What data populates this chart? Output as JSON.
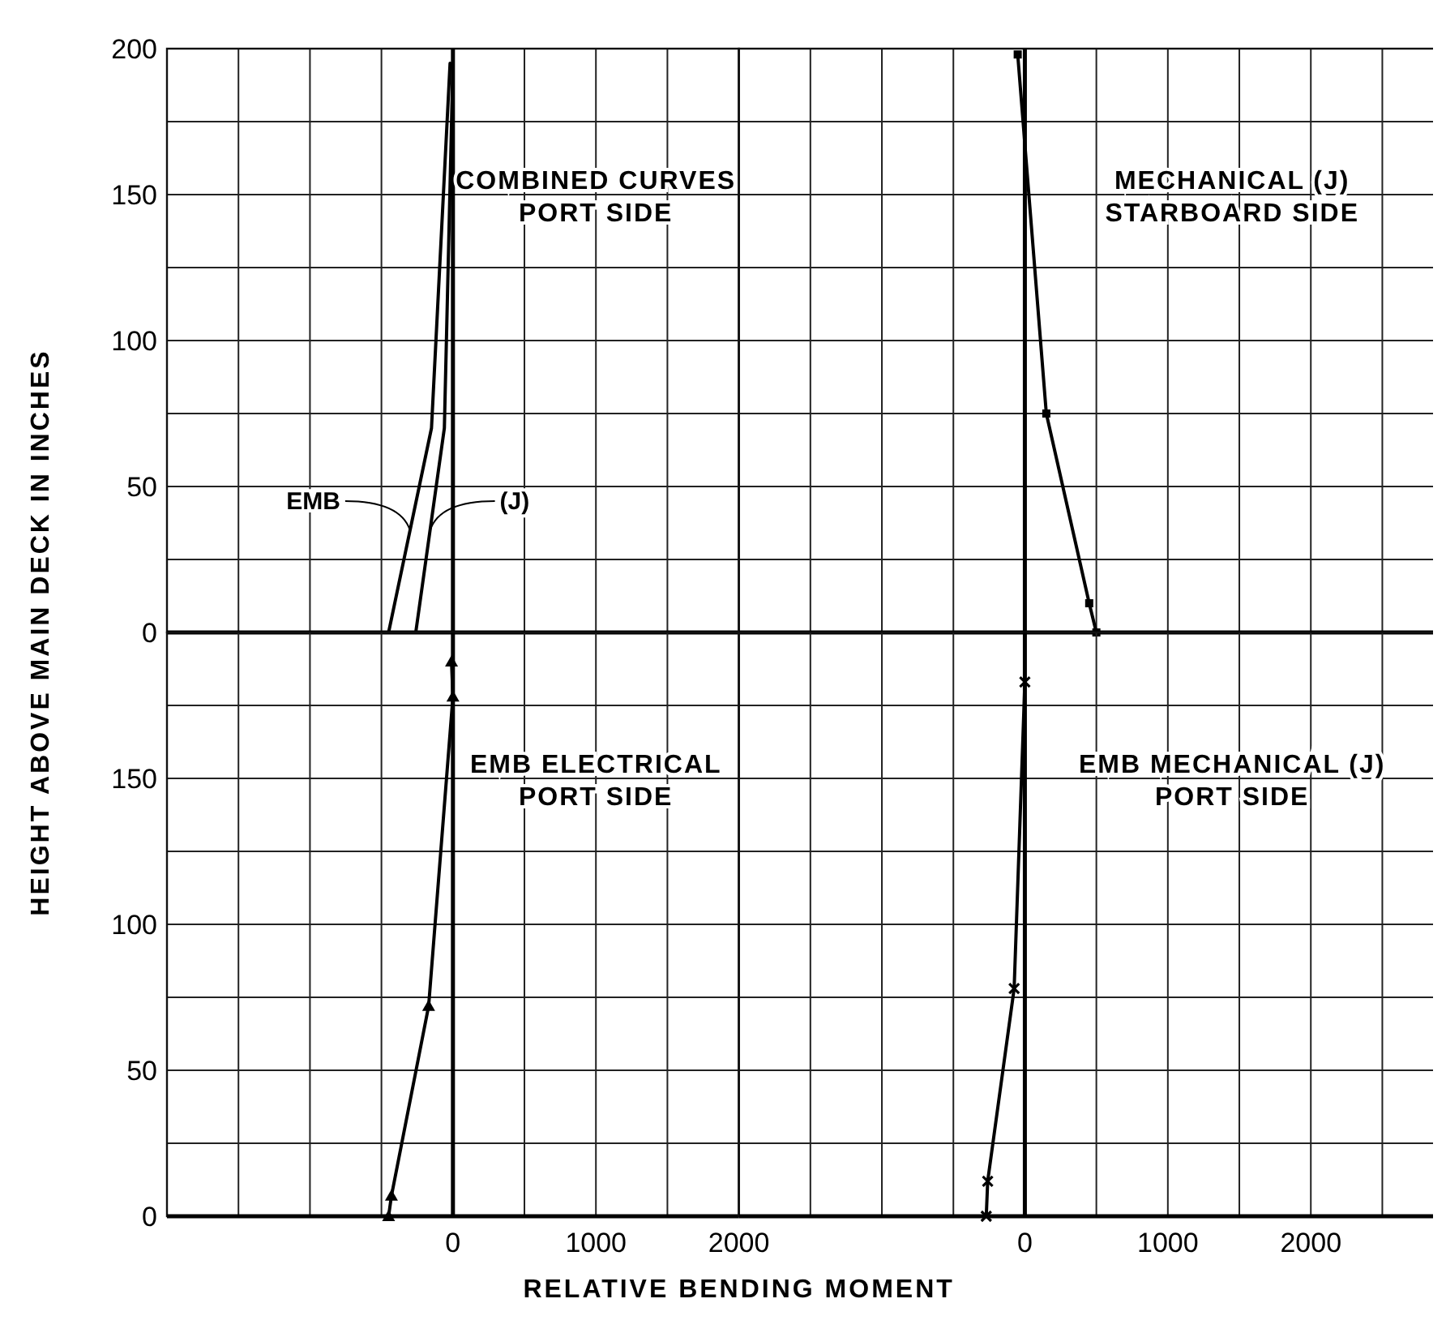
{
  "chart_data": [
    {
      "type": "line",
      "title": "COMBINED CURVES\nPORT SIDE",
      "xlim": [
        -2000,
        2000
      ],
      "ylim": [
        0,
        200
      ],
      "xticks": [
        {
          "value": -2000,
          "label": null
        },
        {
          "value": -1500,
          "label": null
        },
        {
          "value": -1000,
          "label": null
        },
        {
          "value": -500,
          "label": null
        },
        {
          "value": 0,
          "label": null
        },
        {
          "value": 500,
          "label": null
        },
        {
          "value": 1000,
          "label": null
        },
        {
          "value": 1500,
          "label": null
        },
        {
          "value": 2000,
          "label": null
        }
      ],
      "yticks": [
        0,
        {
          "value": 25,
          "label": null
        },
        50,
        {
          "value": 75,
          "label": null
        },
        100,
        {
          "value": 125,
          "label": null
        },
        150,
        {
          "value": 175,
          "label": null
        },
        200
      ],
      "grid": true,
      "tick_labels": "y",
      "marker": "none",
      "ref_lines": [
        {
          "axis": "x",
          "value": 0
        }
      ],
      "series": [
        {
          "name": "EMB",
          "color": "#000000",
          "x": [
            -450,
            -150,
            -20
          ],
          "values": [
            0,
            70,
            195
          ]
        },
        {
          "name": "(J)",
          "color": "#000000",
          "x": [
            -260,
            -60,
            0
          ],
          "values": [
            0,
            70,
            195
          ]
        }
      ]
    },
    {
      "type": "line",
      "title": "MECHANICAL (J)\nSTARBOARD SIDE",
      "xlim": [
        -2000,
        2900
      ],
      "ylim": [
        0,
        200
      ],
      "xticks": [
        {
          "value": -2000,
          "label": null
        },
        {
          "value": -1500,
          "label": null
        },
        {
          "value": -1000,
          "label": null
        },
        {
          "value": -500,
          "label": null
        },
        {
          "value": 0,
          "label": null
        },
        {
          "value": 500,
          "label": null
        },
        {
          "value": 1000,
          "label": null
        },
        {
          "value": 1500,
          "label": null
        },
        {
          "value": 2000,
          "label": null
        },
        {
          "value": 2500,
          "label": null
        }
      ],
      "yticks": [
        {
          "value": 0,
          "label": null
        },
        {
          "value": 25,
          "label": null
        },
        {
          "value": 50,
          "label": null
        },
        {
          "value": 75,
          "label": null
        },
        {
          "value": 100,
          "label": null
        },
        {
          "value": 125,
          "label": null
        },
        {
          "value": 150,
          "label": null
        },
        {
          "value": 175,
          "label": null
        },
        {
          "value": 200,
          "label": null
        }
      ],
      "grid": true,
      "tick_labels": false,
      "marker": "square",
      "ref_lines": [
        {
          "axis": "x",
          "value": 0
        }
      ],
      "series": [
        {
          "color": "#000000",
          "x": [
            -50,
            150,
            450,
            500
          ],
          "values": [
            198,
            75,
            10,
            0
          ]
        }
      ]
    },
    {
      "type": "line",
      "title": "EMB ELECTRICAL\nPORT SIDE",
      "xlabel": "RELATIVE BENDING MOMENT",
      "ylabel": "HEIGHT ABOVE MAIN DECK IN INCHES",
      "xlim": [
        -2000,
        2000
      ],
      "ylim": [
        0,
        200
      ],
      "xticks": [
        {
          "value": -2000,
          "label": null
        },
        {
          "value": -1500,
          "label": null
        },
        {
          "value": -1000,
          "label": null
        },
        {
          "value": -500,
          "label": null
        },
        0,
        {
          "value": 500,
          "label": null
        },
        1000,
        {
          "value": 1500,
          "label": null
        },
        2000
      ],
      "yticks": [
        0,
        {
          "value": 25,
          "label": null
        },
        50,
        {
          "value": 75,
          "label": null
        },
        100,
        {
          "value": 125,
          "label": null
        },
        150,
        {
          "value": 175,
          "label": null
        },
        {
          "value": 200,
          "label": null
        }
      ],
      "grid": true,
      "marker": "triangle",
      "ref_lines": [
        {
          "axis": "x",
          "value": 0
        }
      ],
      "series": [
        {
          "color": "#000000",
          "x": [
            -10,
            0,
            -170,
            -430,
            -450
          ],
          "values": [
            190,
            178,
            72,
            7,
            0
          ]
        }
      ]
    },
    {
      "type": "line",
      "title": "EMB MECHANICAL (J)\nPORT SIDE",
      "xlim": [
        -2000,
        2900
      ],
      "ylim": [
        0,
        200
      ],
      "xticks": [
        {
          "value": -2000,
          "label": null
        },
        {
          "value": -1500,
          "label": null
        },
        {
          "value": -1000,
          "label": null
        },
        {
          "value": -500,
          "label": null
        },
        0,
        {
          "value": 500,
          "label": null
        },
        1000,
        {
          "value": 1500,
          "label": null
        },
        2000,
        {
          "value": 2500,
          "label": null
        }
      ],
      "yticks": [
        {
          "value": 0,
          "label": null
        },
        {
          "value": 25,
          "label": null
        },
        {
          "value": 50,
          "label": null
        },
        {
          "value": 75,
          "label": null
        },
        {
          "value": 100,
          "label": null
        },
        {
          "value": 125,
          "label": null
        },
        {
          "value": 150,
          "label": null
        },
        {
          "value": 175,
          "label": null
        },
        {
          "value": 200,
          "label": null
        }
      ],
      "grid": true,
      "tick_labels": "x",
      "marker": "cross",
      "ref_lines": [
        {
          "axis": "x",
          "value": 0
        }
      ],
      "series": [
        {
          "color": "#000000",
          "x": [
            0,
            -75,
            -260,
            -270
          ],
          "values": [
            183,
            78,
            12,
            0
          ]
        }
      ]
    }
  ]
}
